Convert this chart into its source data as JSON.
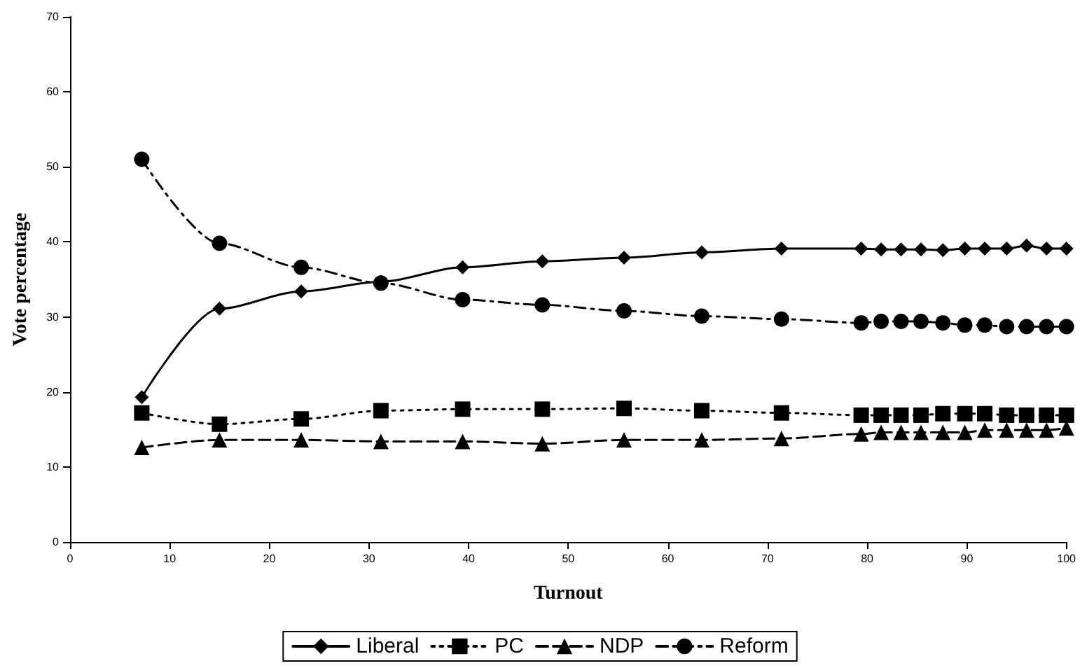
{
  "chart_data": {
    "type": "line",
    "xlabel": "Turnout",
    "ylabel": "Vote percentage",
    "x": [
      7.2,
      15,
      23.2,
      31.2,
      39.4,
      47.4,
      55.6,
      63.4,
      71.4,
      79.4,
      81.4,
      83.4,
      85.4,
      87.6,
      89.8,
      91.8,
      94,
      96,
      98,
      100
    ],
    "series": [
      {
        "name": "Liberal",
        "color": "#000000",
        "marker": "diamond",
        "line_style": "solid",
        "values": [
          19.3,
          31.1,
          33.4,
          34.7,
          36.6,
          37.4,
          37.9,
          38.6,
          39.1,
          39.1,
          39,
          39,
          39,
          38.9,
          39.1,
          39.1,
          39.1,
          39.5,
          39.1,
          39.1
        ]
      },
      {
        "name": "PC",
        "color": "#000000",
        "marker": "square",
        "line_style": "dotted",
        "values": [
          17.2,
          15.7,
          16.4,
          17.5,
          17.7,
          17.7,
          17.8,
          17.5,
          17.2,
          16.9,
          16.9,
          16.9,
          16.9,
          17.1,
          17.1,
          17.1,
          16.9,
          16.9,
          16.9,
          16.9
        ]
      },
      {
        "name": "NDP",
        "color": "#000000",
        "marker": "triangle",
        "line_style": "dashed",
        "values": [
          12.6,
          13.6,
          13.6,
          13.4,
          13.4,
          13.1,
          13.6,
          13.6,
          13.8,
          14.4,
          14.6,
          14.6,
          14.6,
          14.6,
          14.6,
          14.9,
          14.9,
          14.9,
          14.9,
          15.2
        ]
      },
      {
        "name": "Reform",
        "color": "#000000",
        "marker": "circle",
        "line_style": "dashdot",
        "values": [
          51,
          39.8,
          36.6,
          34.5,
          32.3,
          31.6,
          30.8,
          30.1,
          29.7,
          29.2,
          29.4,
          29.4,
          29.4,
          29.2,
          28.9,
          28.9,
          28.7,
          28.7,
          28.7,
          28.7
        ]
      }
    ],
    "xlim": [
      0,
      100
    ],
    "xticks": [
      0,
      10,
      20,
      30,
      40,
      50,
      60,
      70,
      80,
      90,
      100
    ],
    "ylim": [
      0,
      70
    ],
    "yticks": [
      0,
      10,
      20,
      30,
      40,
      50,
      60,
      70
    ],
    "grid": false,
    "legend": "bottom"
  }
}
